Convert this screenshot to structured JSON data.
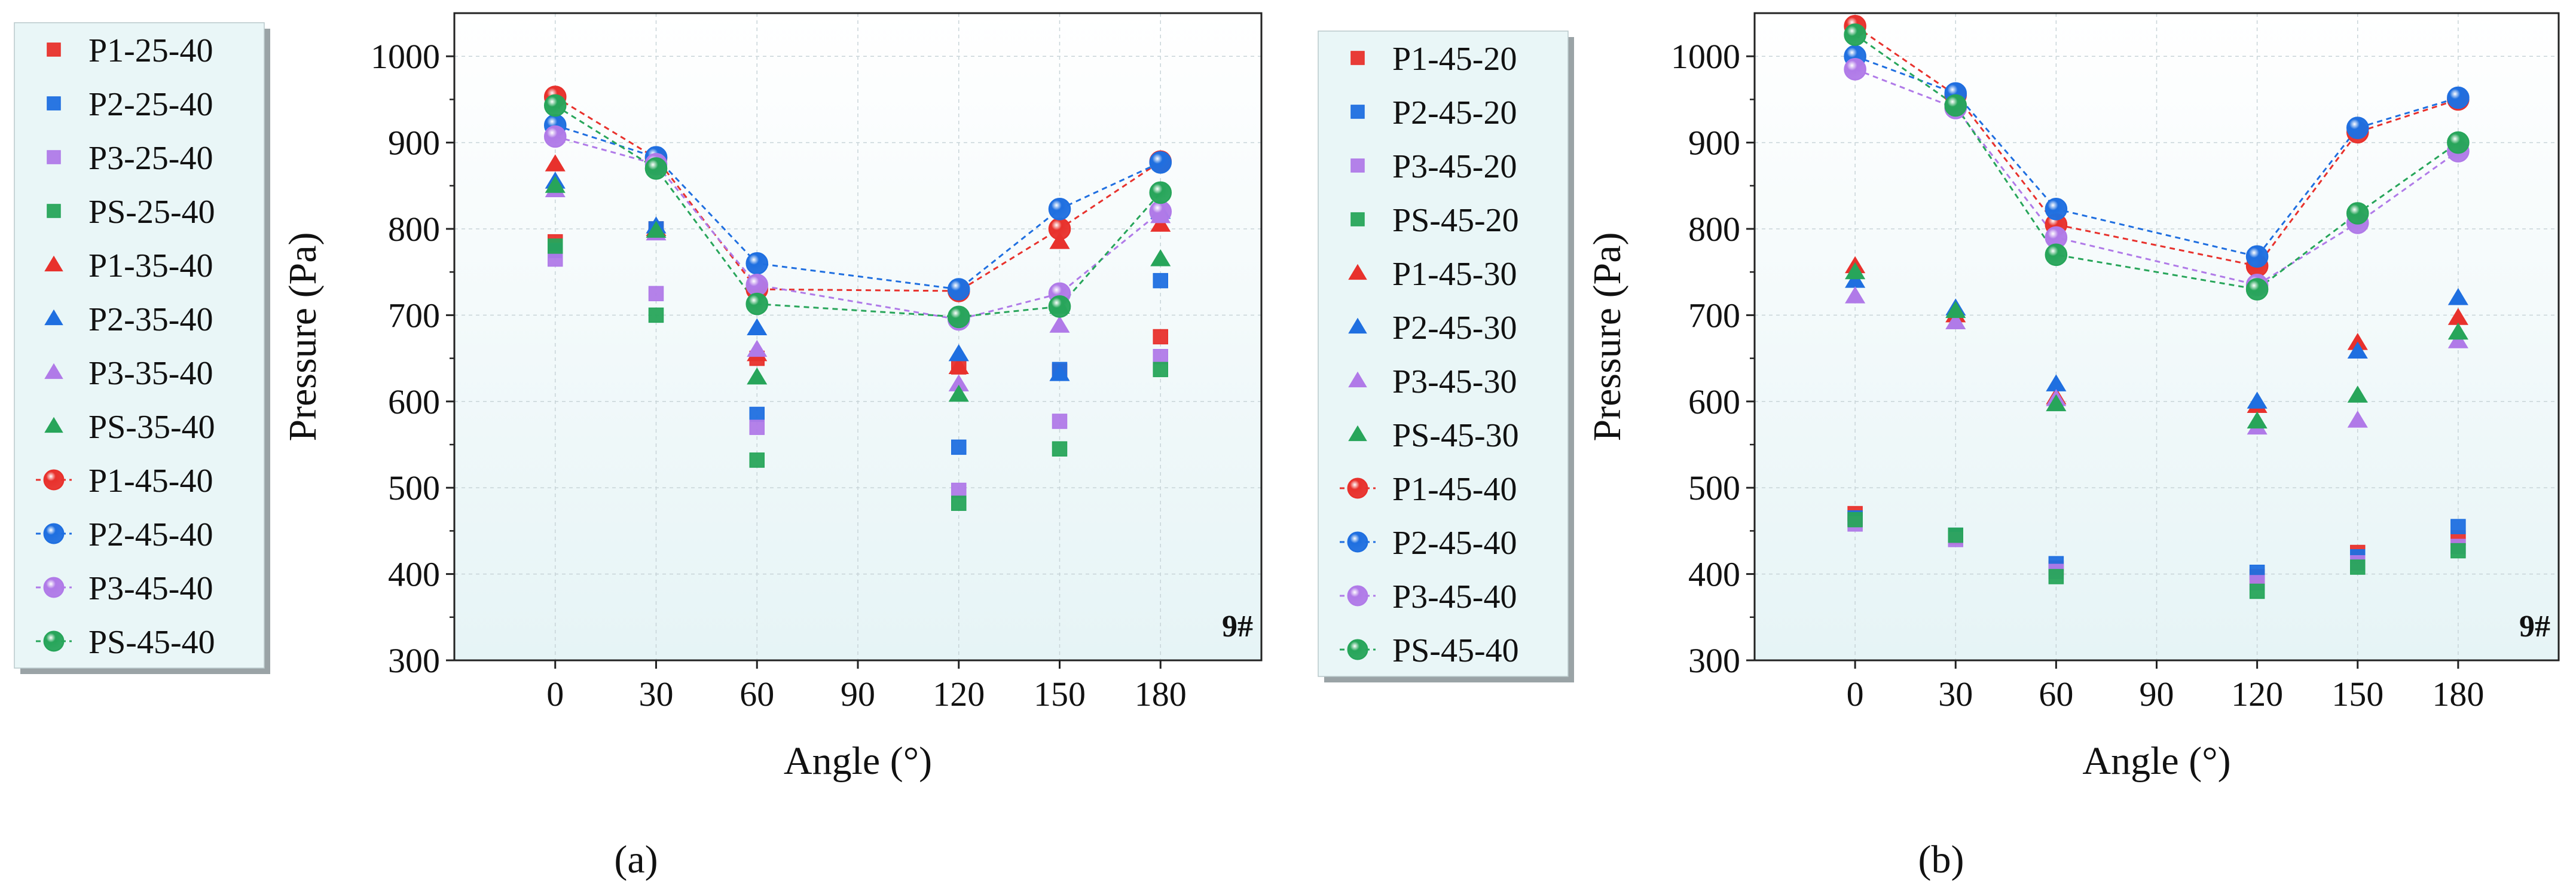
{
  "figure": {
    "panel_labels": [
      "(a)",
      "(b)"
    ],
    "colors": {
      "P1": "#e8312c",
      "P2": "#1f6fe0",
      "P3": "#b07ae8",
      "PS": "#27a55a",
      "plot_bg_top": "#ffffff",
      "plot_bg_bottom": "#e6f4f6",
      "legend_bg": "#e9f6f7",
      "axis": "#222222"
    }
  },
  "chart_data": [
    {
      "type": "scatter",
      "panel": "(a)",
      "xlabel": "Angle (°)",
      "ylabel": "Pressure (Pa)",
      "annotation": "9#",
      "xlim": [
        -30,
        210
      ],
      "ylim": [
        300,
        1050
      ],
      "xticks": [
        0,
        30,
        60,
        90,
        120,
        150,
        180
      ],
      "yticks": [
        300,
        400,
        500,
        600,
        700,
        800,
        900,
        1000
      ],
      "x": [
        0,
        30,
        60,
        120,
        150,
        180
      ],
      "series": [
        {
          "name": "P1-25-40",
          "marker": "square",
          "group": "P1",
          "values": [
            785,
            800,
            650,
            640,
            635,
            675
          ]
        },
        {
          "name": "P2-25-40",
          "marker": "square",
          "group": "P2",
          "values": [
            775,
            800,
            585,
            547,
            637,
            740
          ]
        },
        {
          "name": "P3-25-40",
          "marker": "square",
          "group": "P3",
          "values": [
            765,
            725,
            570,
            497,
            577,
            652
          ]
        },
        {
          "name": "PS-25-40",
          "marker": "square",
          "group": "PS",
          "values": [
            780,
            700,
            532,
            482,
            545,
            637
          ]
        },
        {
          "name": "P1-35-40",
          "marker": "triangle",
          "group": "P1",
          "values": [
            875,
            800,
            655,
            640,
            785,
            805
          ]
        },
        {
          "name": "P2-35-40",
          "marker": "triangle",
          "group": "P2",
          "values": [
            855,
            803,
            685,
            655,
            632,
            820
          ]
        },
        {
          "name": "P3-35-40",
          "marker": "triangle",
          "group": "P3",
          "values": [
            845,
            795,
            660,
            620,
            688,
            815
          ]
        },
        {
          "name": "PS-35-40",
          "marker": "triangle",
          "group": "PS",
          "values": [
            850,
            798,
            628,
            608,
            710,
            765
          ]
        },
        {
          "name": "P1-45-40",
          "marker": "sphere",
          "group": "P1",
          "line": true,
          "values": [
            953,
            882,
            730,
            728,
            800,
            878
          ]
        },
        {
          "name": "P2-45-40",
          "marker": "sphere",
          "group": "P2",
          "line": true,
          "values": [
            920,
            883,
            760,
            730,
            823,
            877
          ]
        },
        {
          "name": "P3-45-40",
          "marker": "sphere",
          "group": "P3",
          "line": true,
          "values": [
            907,
            875,
            735,
            695,
            725,
            820
          ]
        },
        {
          "name": "PS-45-40",
          "marker": "sphere",
          "group": "PS",
          "line": true,
          "values": [
            943,
            870,
            713,
            698,
            710,
            842
          ]
        }
      ]
    },
    {
      "type": "scatter",
      "panel": "(b)",
      "xlabel": "Angle (°)",
      "ylabel": "Pressure (Pa)",
      "annotation": "9#",
      "xlim": [
        -30,
        210
      ],
      "ylim": [
        300,
        1050
      ],
      "xticks": [
        0,
        30,
        60,
        90,
        120,
        150,
        180
      ],
      "yticks": [
        300,
        400,
        500,
        600,
        700,
        800,
        900,
        1000
      ],
      "x": [
        0,
        30,
        60,
        120,
        150,
        180
      ],
      "series": [
        {
          "name": "P1-45-20",
          "marker": "square",
          "group": "P1",
          "values": [
            470,
            443,
            407,
            397,
            425,
            442
          ]
        },
        {
          "name": "P2-45-20",
          "marker": "square",
          "group": "P2",
          "values": [
            465,
            445,
            412,
            402,
            420,
            455
          ]
        },
        {
          "name": "P3-45-20",
          "marker": "square",
          "group": "P3",
          "values": [
            458,
            440,
            403,
            390,
            413,
            432
          ]
        },
        {
          "name": "PS-45-20",
          "marker": "square",
          "group": "PS",
          "values": [
            463,
            445,
            397,
            380,
            408,
            427
          ]
        },
        {
          "name": "P1-45-30",
          "marker": "triangle",
          "group": "P1",
          "values": [
            757,
            700,
            605,
            595,
            668,
            697
          ]
        },
        {
          "name": "P2-45-30",
          "marker": "triangle",
          "group": "P2",
          "values": [
            740,
            708,
            620,
            600,
            658,
            720
          ]
        },
        {
          "name": "P3-45-30",
          "marker": "triangle",
          "group": "P3",
          "values": [
            722,
            692,
            603,
            570,
            578,
            670
          ]
        },
        {
          "name": "PS-45-30",
          "marker": "triangle",
          "group": "PS",
          "values": [
            750,
            705,
            597,
            577,
            607,
            680
          ]
        },
        {
          "name": "P1-45-40",
          "marker": "sphere",
          "group": "P1",
          "line": true,
          "values": [
            1035,
            955,
            805,
            757,
            912,
            950
          ]
        },
        {
          "name": "P2-45-40",
          "marker": "sphere",
          "group": "P2",
          "line": true,
          "values": [
            1000,
            957,
            823,
            768,
            917,
            952
          ]
        },
        {
          "name": "P3-45-40",
          "marker": "sphere",
          "group": "P3",
          "line": true,
          "values": [
            985,
            940,
            790,
            735,
            807,
            890
          ]
        },
        {
          "name": "PS-45-40",
          "marker": "sphere",
          "group": "PS",
          "line": true,
          "values": [
            1025,
            943,
            770,
            730,
            818,
            900
          ]
        }
      ]
    }
  ]
}
